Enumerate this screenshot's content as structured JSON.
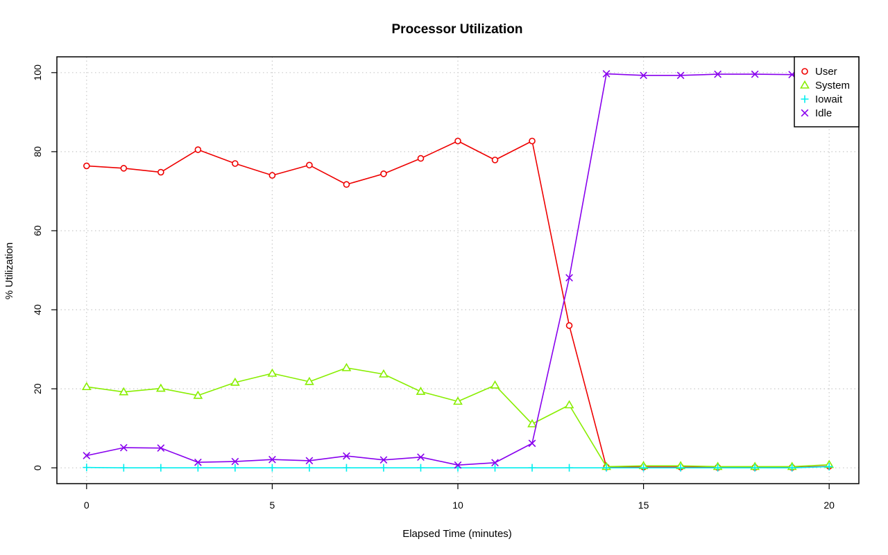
{
  "chart_data": {
    "type": "line",
    "title": "Processor Utilization",
    "xlabel": "Elapsed Time (minutes)",
    "ylabel": "% Utilization",
    "xlim": [
      -0.8,
      20.8
    ],
    "ylim": [
      -4,
      104
    ],
    "x_ticks": [
      0,
      5,
      10,
      15,
      20
    ],
    "y_ticks": [
      0,
      20,
      40,
      60,
      80,
      100
    ],
    "grid": true,
    "legend_position": "top-right",
    "x": [
      0,
      1,
      2,
      3,
      4,
      5,
      6,
      7,
      8,
      9,
      10,
      11,
      12,
      13,
      14,
      15,
      16,
      17,
      18,
      19,
      20
    ],
    "series": [
      {
        "name": "User",
        "color": "#ee0000",
        "marker": "circle",
        "values": [
          76.4,
          75.8,
          74.8,
          80.5,
          77.0,
          74.0,
          76.6,
          71.7,
          74.4,
          78.3,
          82.7,
          77.9,
          82.7,
          36.0,
          0.2,
          0.2,
          0.2,
          0.1,
          0.1,
          0.1,
          0.4
        ]
      },
      {
        "name": "System",
        "color": "#88ee00",
        "marker": "triangle",
        "values": [
          20.5,
          19.2,
          20.1,
          18.3,
          21.6,
          23.9,
          21.8,
          25.3,
          23.7,
          19.3,
          16.8,
          20.9,
          11.1,
          15.9,
          0.3,
          0.5,
          0.5,
          0.3,
          0.3,
          0.3,
          0.8
        ]
      },
      {
        "name": "Iowait",
        "color": "#00eeee",
        "marker": "plus",
        "values": [
          0.1,
          0.0,
          0.0,
          0.0,
          0.0,
          0.0,
          0.0,
          0.0,
          0.0,
          0.0,
          0.0,
          0.0,
          0.0,
          0.0,
          0.0,
          0.0,
          0.0,
          0.0,
          0.0,
          0.0,
          0.3
        ]
      },
      {
        "name": "Idle",
        "color": "#8800ee",
        "marker": "cross",
        "values": [
          3.1,
          5.1,
          5.0,
          1.4,
          1.6,
          2.1,
          1.8,
          3.0,
          2.0,
          2.7,
          0.7,
          1.3,
          6.2,
          48.1,
          99.7,
          99.3,
          99.3,
          99.6,
          99.6,
          99.5,
          98.5
        ]
      }
    ]
  }
}
